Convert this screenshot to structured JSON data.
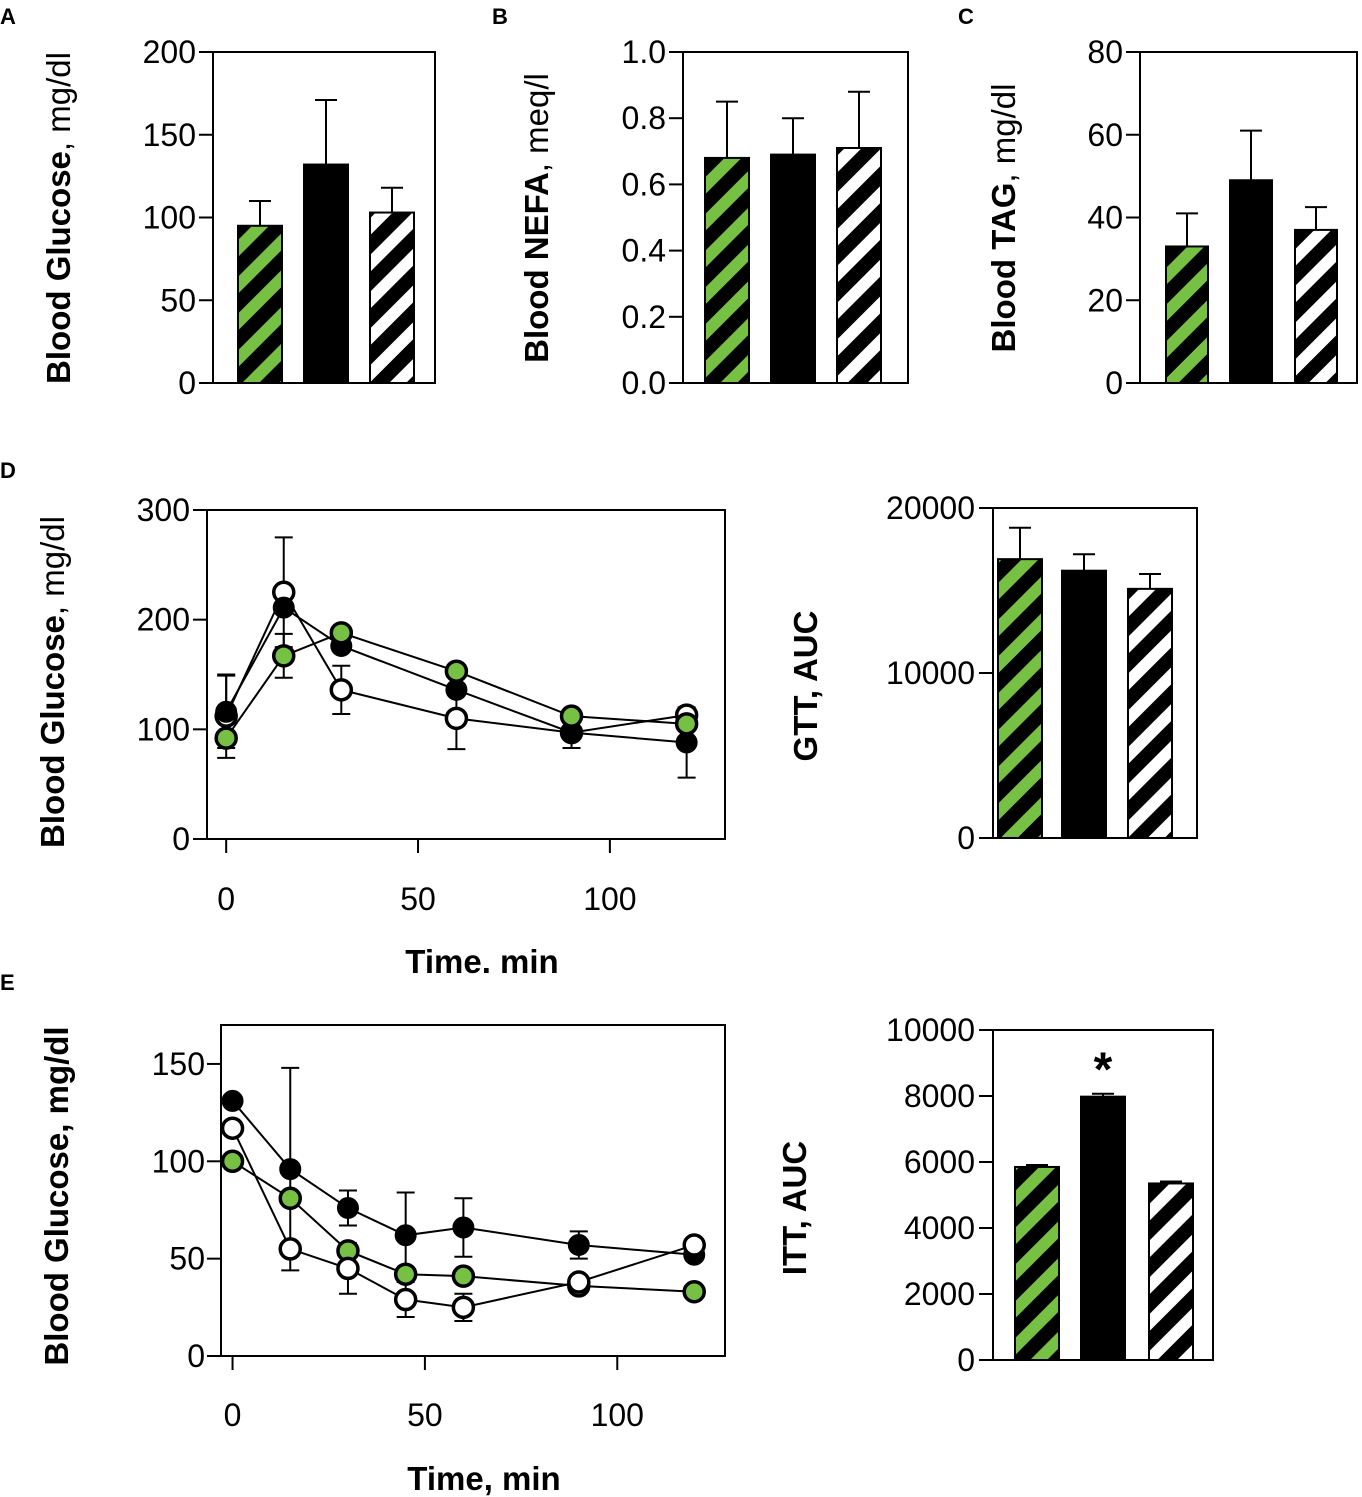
{
  "colors": {
    "green": "#76c043",
    "black": "#000000",
    "white": "#ffffff"
  },
  "groups": [
    {
      "name": "green-hatched",
      "fill": "green-stripe"
    },
    {
      "name": "solid-black",
      "fill": "solid"
    },
    {
      "name": "white-hatched",
      "fill": "white-stripe"
    }
  ],
  "chart_data": [
    {
      "id": "A",
      "type": "bar",
      "panel_label": "A",
      "ylabel_bold": "Blood Glucose",
      "ylabel_rest": ", mg/dl",
      "ylim": [
        0,
        200
      ],
      "yticks": [
        "0",
        "50",
        "100",
        "150",
        "200"
      ],
      "values": [
        95,
        132,
        103
      ],
      "errors": [
        15,
        39,
        15
      ]
    },
    {
      "id": "B",
      "type": "bar",
      "panel_label": "B",
      "ylabel_bold": "Blood NEFA",
      "ylabel_rest": ", meq/l",
      "ylim": [
        0,
        1.0
      ],
      "yticks": [
        "0.0",
        "0.2",
        "0.4",
        "0.6",
        "0.8",
        "1.0"
      ],
      "values": [
        0.68,
        0.69,
        0.71
      ],
      "errors": [
        0.17,
        0.11,
        0.17
      ]
    },
    {
      "id": "C",
      "type": "bar",
      "panel_label": "C",
      "ylabel_bold": "Blood TAG",
      "ylabel_rest": ", mg/dl",
      "ylim": [
        0,
        80
      ],
      "yticks": [
        "0",
        "20",
        "40",
        "60",
        "80"
      ],
      "values": [
        33,
        49,
        37
      ],
      "errors": [
        8,
        12,
        5.5
      ]
    },
    {
      "id": "D-line",
      "type": "line",
      "panel_label": "D",
      "ylabel_bold": "Blood Glucose",
      "ylabel_rest": ", mg/dl",
      "xlabel": "Time. min",
      "xlim": [
        -5,
        130
      ],
      "ylim": [
        0,
        300
      ],
      "xticks": [
        "0",
        "50",
        "100"
      ],
      "yticks": [
        "0",
        "100",
        "200",
        "300"
      ],
      "series": [
        {
          "name": "white",
          "x": [
            0,
            15,
            30,
            60,
            90,
            120
          ],
          "y": [
            112,
            225,
            136,
            110,
            97,
            113
          ],
          "err": [
            38,
            50,
            22,
            28,
            0,
            0
          ]
        },
        {
          "name": "black",
          "x": [
            0,
            15,
            30,
            60,
            90,
            120
          ],
          "y": [
            116,
            211,
            176,
            136,
            97,
            88
          ],
          "err": [
            33,
            0,
            0,
            0,
            14,
            32
          ]
        },
        {
          "name": "green",
          "x": [
            0,
            15,
            30,
            60,
            90,
            120
          ],
          "y": [
            92,
            167,
            188,
            153,
            112,
            105
          ],
          "err": [
            0,
            20,
            0,
            0,
            0,
            0
          ]
        }
      ]
    },
    {
      "id": "D-bar",
      "type": "bar",
      "ylabel_bold": "GTT, AUC",
      "ylabel_rest": "",
      "ylim": [
        0,
        20000
      ],
      "yticks": [
        "0",
        "10000",
        "20000"
      ],
      "values": [
        16900,
        16200,
        15100
      ],
      "errors": [
        1900,
        1000,
        900
      ]
    },
    {
      "id": "E-line",
      "type": "line",
      "panel_label": "E",
      "ylabel_bold": "Blood Glucose, mg/dl",
      "ylabel_rest": "",
      "xlabel": "Time, min",
      "xlim": [
        -3,
        128
      ],
      "ylim": [
        0,
        170
      ],
      "xticks": [
        "0",
        "50",
        "100"
      ],
      "yticks": [
        "0",
        "50",
        "100",
        "150"
      ],
      "series": [
        {
          "name": "black",
          "x": [
            0,
            15,
            30,
            45,
            60,
            90,
            120
          ],
          "y": [
            131,
            96,
            76,
            62,
            66,
            57,
            52
          ],
          "err": [
            0,
            52,
            9,
            22,
            15,
            7,
            0
          ]
        },
        {
          "name": "green",
          "x": [
            0,
            15,
            30,
            45,
            60,
            90,
            120
          ],
          "y": [
            100,
            81,
            54,
            42,
            41,
            36,
            33
          ],
          "err": [
            0,
            0,
            0,
            0,
            0,
            0,
            0
          ]
        },
        {
          "name": "white",
          "x": [
            0,
            15,
            30,
            45,
            60,
            90,
            120
          ],
          "y": [
            117,
            55,
            45,
            29,
            25,
            38,
            57
          ],
          "err": [
            0,
            0,
            13,
            9,
            7,
            0,
            0
          ]
        }
      ]
    },
    {
      "id": "E-bar",
      "type": "bar",
      "ylabel_bold": "ITT, AUC",
      "ylabel_rest": "",
      "ylim": [
        0,
        10000
      ],
      "yticks": [
        "0",
        "2000",
        "4000",
        "6000",
        "8000",
        "10000"
      ],
      "values": [
        5850,
        7980,
        5350
      ],
      "errors": [
        60,
        90,
        60
      ],
      "annotation": "*"
    }
  ]
}
